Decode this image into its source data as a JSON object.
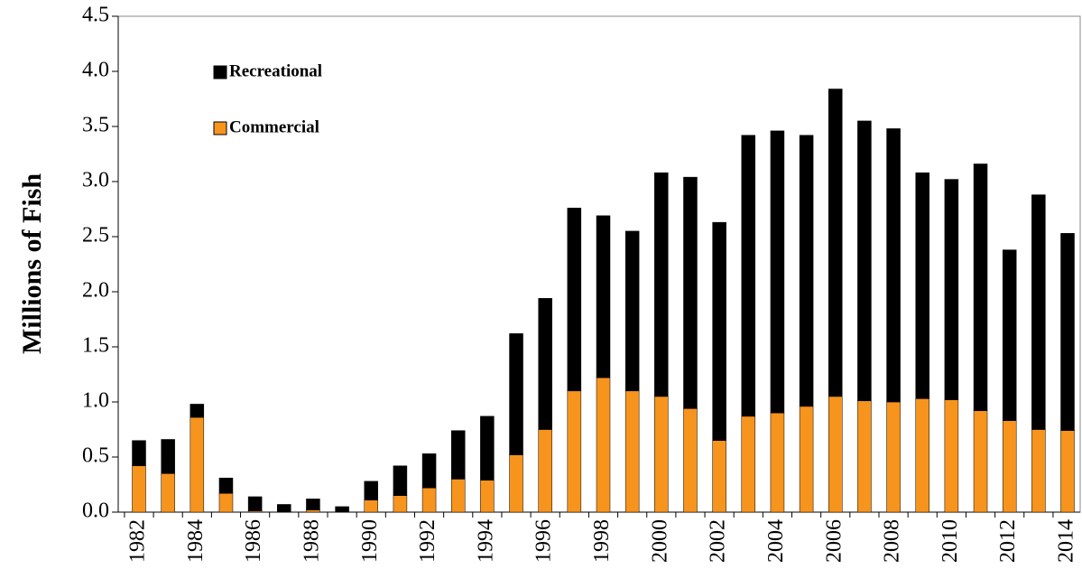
{
  "chart_data": {
    "type": "stacked_bar",
    "y_label": "Millions of Fish",
    "categories": [
      "1982",
      null,
      "1984",
      null,
      "1986",
      null,
      "1988",
      null,
      "1990",
      null,
      "1992",
      null,
      "1994",
      null,
      "1996",
      null,
      "1998",
      null,
      "2000",
      null,
      "2002",
      null,
      "2004",
      null,
      "2006",
      null,
      "2008",
      null,
      "2010",
      null,
      "2012",
      null,
      "2014"
    ],
    "series": [
      {
        "name": "Commercial",
        "color": "#f7941d",
        "values": [
          0.42,
          0.35,
          0.86,
          0.17,
          0.01,
          0.0,
          0.02,
          0.0,
          0.11,
          0.15,
          0.22,
          0.3,
          0.29,
          0.52,
          0.75,
          1.1,
          1.22,
          1.1,
          1.05,
          0.94,
          0.65,
          0.87,
          0.9,
          0.96,
          1.05,
          1.01,
          1.0,
          1.03,
          1.02,
          0.92,
          0.83,
          0.75,
          0.74
        ]
      },
      {
        "name": "Recreational",
        "color": "#000000",
        "values": [
          0.23,
          0.31,
          0.12,
          0.14,
          0.13,
          0.07,
          0.1,
          0.05,
          0.17,
          0.27,
          0.31,
          0.44,
          0.58,
          1.1,
          1.19,
          1.66,
          1.47,
          1.45,
          2.03,
          2.1,
          1.98,
          2.55,
          2.56,
          2.46,
          2.79,
          2.54,
          2.48,
          2.05,
          2.0,
          2.24,
          1.55,
          2.13,
          1.79
        ]
      }
    ],
    "ylim": [
      0,
      4.5
    ],
    "yticks": [
      {
        "value": 0,
        "label": "0.0"
      },
      0.5,
      {
        "value": 1,
        "label": "1.0"
      },
      1.5,
      {
        "value": 2,
        "label": "2.0"
      },
      2.5,
      {
        "value": 3,
        "label": "3.0"
      },
      3.5,
      {
        "value": 4,
        "label": "4.0"
      },
      4.5
    ]
  }
}
